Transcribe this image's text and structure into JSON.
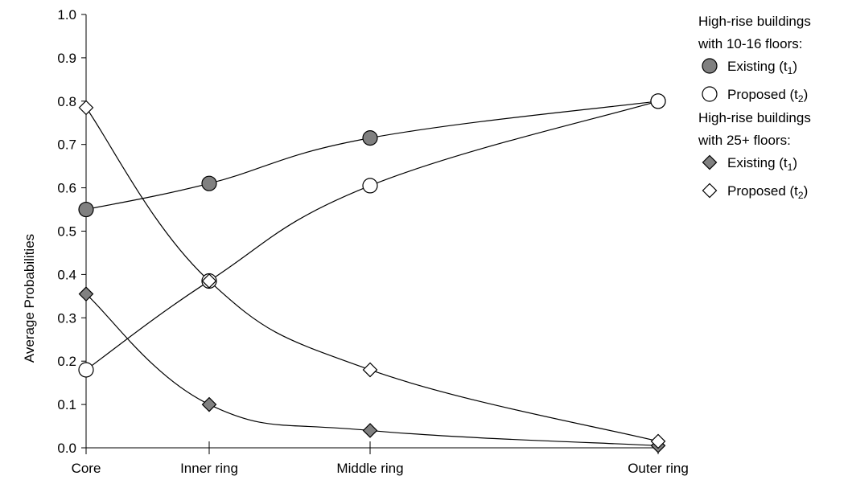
{
  "chart_data": {
    "type": "line",
    "title": "",
    "xlabel": "",
    "ylabel": "Average Probabilities",
    "categories": [
      "Core",
      "Inner ring",
      "Middle ring",
      "Outer ring"
    ],
    "ylim": [
      0,
      1.0
    ],
    "yticks": [
      "0.0",
      "0.1",
      "0.2",
      "0.3",
      "0.4",
      "0.5",
      "0.6",
      "0.7",
      "0.8",
      "0.9",
      "1.0"
    ],
    "grid": false,
    "legend_position": "right",
    "legend_groups": [
      {
        "heading_lines": [
          "High-rise buildings",
          "with 10-16 floors:"
        ],
        "series_indices": [
          0,
          1
        ]
      },
      {
        "heading_lines": [
          "High-rise buildings",
          "with 25+ floors:"
        ],
        "series_indices": [
          2,
          3
        ]
      }
    ],
    "series": [
      {
        "name": "Existing",
        "sub": "1",
        "marker": "circle",
        "fill": "#808080",
        "values": [
          0.55,
          0.61,
          0.715,
          0.8
        ]
      },
      {
        "name": "Proposed",
        "sub": "2",
        "marker": "circle",
        "fill": "#ffffff",
        "values": [
          0.18,
          0.385,
          0.605,
          0.8
        ]
      },
      {
        "name": "Existing",
        "sub": "1",
        "marker": "diamond",
        "fill": "#808080",
        "values": [
          0.355,
          0.1,
          0.04,
          0.005
        ]
      },
      {
        "name": "Proposed",
        "sub": "2",
        "marker": "diamond",
        "fill": "#ffffff",
        "values": [
          0.785,
          0.385,
          0.18,
          0.015
        ]
      }
    ]
  }
}
